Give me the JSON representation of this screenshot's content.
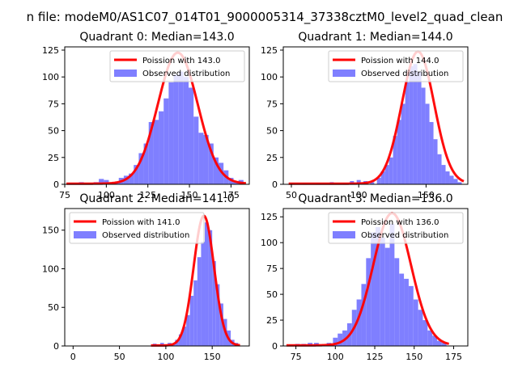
{
  "figure": {
    "suptitle": "n file: modeM0/AS1C07_014T01_9000005314_37338cztM0_level2_quad_clean"
  },
  "colors": {
    "curve": "#ff0000",
    "histogram": "#7f7fff",
    "axes": "#000000",
    "background": "#ffffff"
  },
  "chart_data": [
    {
      "type": "bar",
      "title": "Quadrant 0: Median=143.0",
      "xlim": [
        75,
        186
      ],
      "ylim": [
        0,
        128
      ],
      "xticks": [
        75,
        100,
        125,
        150,
        175
      ],
      "yticks": [
        0,
        25,
        50,
        75,
        100,
        125
      ],
      "xticklabels": [
        "75",
        "100",
        "125",
        "150",
        "175"
      ],
      "yticklabels": [
        "0",
        "25",
        "50",
        "75",
        "100",
        "125"
      ],
      "poisson_mean": 143.0,
      "curve_peak": 122,
      "curve_sigma": 12,
      "legend": {
        "position": "top-right",
        "entries": [
          "Poission with 143.0",
          "Observed distribution"
        ]
      },
      "series": [
        {
          "name": "Observed distribution",
          "kind": "histogram",
          "x": [
            79,
            82,
            85,
            88,
            91,
            94,
            97,
            100,
            103,
            106,
            109,
            112,
            115,
            118,
            121,
            124,
            127,
            130,
            133,
            136,
            139,
            142,
            145,
            148,
            151,
            154,
            157,
            160,
            163,
            166,
            169,
            172,
            175,
            178,
            181
          ],
          "bin_width": 3,
          "values": [
            1,
            1,
            2,
            1,
            1,
            2,
            5,
            4,
            1,
            2,
            6,
            8,
            10,
            18,
            29,
            38,
            58,
            60,
            68,
            80,
            95,
            102,
            105,
            100,
            90,
            63,
            48,
            46,
            38,
            25,
            20,
            13,
            6,
            3,
            4
          ]
        },
        {
          "name": "Poission with 143.0",
          "kind": "curve",
          "mean": 143.0
        }
      ]
    },
    {
      "type": "bar",
      "title": "Quadrant 1: Median=144.0",
      "xlim": [
        44,
        181
      ],
      "ylim": [
        0,
        128
      ],
      "xticks": [
        50,
        100,
        150
      ],
      "yticks": [
        0,
        25,
        50,
        75,
        100,
        125
      ],
      "xticklabels": [
        "50",
        "100",
        "150"
      ],
      "yticklabels": [
        "0",
        "25",
        "50",
        "75",
        "100",
        "125"
      ],
      "poisson_mean": 144.0,
      "curve_peak": 123,
      "curve_sigma": 12,
      "legend": {
        "position": "top-right",
        "entries": [
          "Poission with 144.0",
          "Observed distribution"
        ]
      },
      "series": [
        {
          "name": "Observed distribution",
          "kind": "histogram",
          "x": [
            51,
            60,
            70,
            80,
            90,
            95,
            100,
            105,
            110,
            115,
            118,
            121,
            124,
            127,
            130,
            133,
            136,
            139,
            142,
            145,
            148,
            151,
            154,
            157,
            160,
            163,
            166,
            169,
            172,
            175
          ],
          "bin_width": 3,
          "values": [
            1,
            1,
            1,
            2,
            1,
            3,
            4,
            3,
            2,
            6,
            12,
            18,
            25,
            45,
            60,
            75,
            95,
            110,
            112,
            105,
            90,
            75,
            58,
            42,
            28,
            18,
            12,
            8,
            5,
            2
          ]
        },
        {
          "name": "Poission with 144.0",
          "kind": "curve",
          "mean": 144.0
        }
      ]
    },
    {
      "type": "bar",
      "title": "Quadrant 2: Median=141.0",
      "xlim": [
        -9,
        190
      ],
      "ylim": [
        0,
        178
      ],
      "xticks": [
        0,
        50,
        100,
        150
      ],
      "yticks": [
        0,
        50,
        100,
        150
      ],
      "xticklabels": [
        "0",
        "50",
        "100",
        "150"
      ],
      "yticklabels": [
        "0",
        "50",
        "100",
        "150"
      ],
      "poisson_mean": 141.0,
      "curve_peak": 168,
      "curve_sigma": 11,
      "legend": {
        "position": "top-left",
        "entries": [
          "Poission with 141.0",
          "Observed distribution"
        ]
      },
      "series": [
        {
          "name": "Observed distribution",
          "kind": "histogram",
          "x": [
            88,
            92,
            96,
            100,
            104,
            108,
            112,
            116,
            120,
            124,
            128,
            132,
            136,
            140,
            144,
            148,
            152,
            156,
            160,
            164,
            168,
            172,
            176
          ],
          "bin_width": 4,
          "values": [
            3,
            2,
            4,
            2,
            4,
            3,
            8,
            15,
            25,
            40,
            65,
            85,
            115,
            135,
            160,
            150,
            110,
            80,
            55,
            35,
            20,
            8,
            4
          ]
        },
        {
          "name": "Poission with 141.0",
          "kind": "curve",
          "mean": 141.0
        }
      ]
    },
    {
      "type": "bar",
      "title": "Quadrant 3: Median=136.0",
      "xlim": [
        67,
        184
      ],
      "ylim": [
        0,
        133
      ],
      "xticks": [
        75,
        100,
        125,
        150,
        175
      ],
      "yticks": [
        0,
        25,
        50,
        75,
        100,
        125
      ],
      "xticklabels": [
        "75",
        "100",
        "125",
        "150",
        "175"
      ],
      "yticklabels": [
        "0",
        "25",
        "50",
        "75",
        "100",
        "125"
      ],
      "poisson_mean": 136.0,
      "curve_peak": 128,
      "curve_sigma": 12,
      "legend": {
        "position": "top-right",
        "entries": [
          "Poission with 136.0",
          "Observed distribution"
        ]
      },
      "series": [
        {
          "name": "Observed distribution",
          "kind": "histogram",
          "x": [
            72,
            76,
            80,
            84,
            88,
            92,
            96,
            100,
            103,
            106,
            109,
            112,
            115,
            118,
            121,
            124,
            127,
            130,
            133,
            136,
            139,
            142,
            145,
            148,
            151,
            154,
            157,
            160,
            163,
            166,
            169
          ],
          "bin_width": 3,
          "values": [
            1,
            2,
            2,
            3,
            3,
            1,
            3,
            8,
            12,
            15,
            22,
            35,
            45,
            60,
            85,
            110,
            115,
            105,
            95,
            118,
            85,
            70,
            65,
            58,
            45,
            35,
            25,
            15,
            10,
            5,
            3
          ]
        },
        {
          "name": "Poission with 136.0",
          "kind": "curve",
          "mean": 136.0
        }
      ]
    }
  ]
}
